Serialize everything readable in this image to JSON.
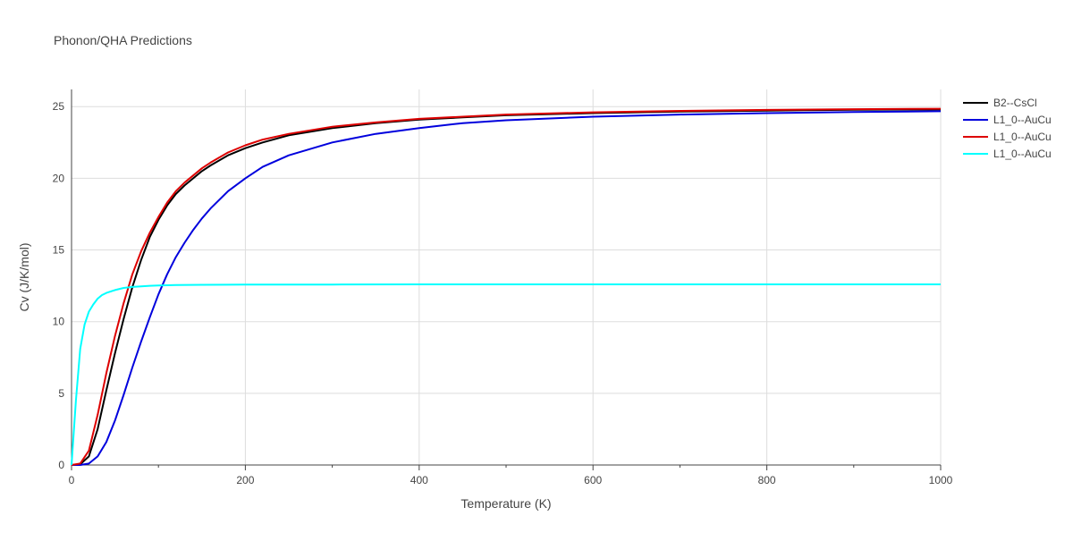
{
  "chart_data": {
    "type": "line",
    "title": "Phonon/QHA Predictions",
    "xlabel": "Temperature (K)",
    "ylabel": "Cv (J/K/mol)",
    "xlim": [
      0,
      1000
    ],
    "ylim": [
      0,
      26.2
    ],
    "x_ticks": [
      0,
      200,
      400,
      600,
      800,
      1000
    ],
    "y_ticks": [
      0,
      5,
      10,
      15,
      20,
      25
    ],
    "grid": true,
    "legend_position": "top-right",
    "series": [
      {
        "name": "B2--CsCl",
        "color": "#000000",
        "x": [
          0,
          10,
          20,
          30,
          40,
          50,
          60,
          70,
          80,
          90,
          100,
          110,
          120,
          130,
          140,
          150,
          160,
          180,
          200,
          220,
          250,
          300,
          350,
          400,
          450,
          500,
          600,
          700,
          800,
          900,
          1000
        ],
        "y": [
          0,
          0.05,
          0.6,
          2.5,
          5.2,
          7.8,
          10.2,
          12.4,
          14.3,
          15.9,
          17.1,
          18.1,
          18.9,
          19.5,
          20.0,
          20.5,
          20.9,
          21.6,
          22.1,
          22.5,
          23.0,
          23.5,
          23.85,
          24.1,
          24.25,
          24.4,
          24.55,
          24.65,
          24.72,
          24.78,
          24.8
        ]
      },
      {
        "name": "L1_0--AuCu",
        "color": "#0000dd",
        "x": [
          0,
          10,
          20,
          30,
          40,
          50,
          60,
          70,
          80,
          90,
          100,
          110,
          120,
          130,
          140,
          150,
          160,
          180,
          200,
          220,
          250,
          300,
          350,
          400,
          450,
          500,
          600,
          700,
          800,
          900,
          1000
        ],
        "y": [
          0,
          0.0,
          0.1,
          0.6,
          1.6,
          3.1,
          4.9,
          6.8,
          8.6,
          10.3,
          11.9,
          13.3,
          14.5,
          15.5,
          16.4,
          17.2,
          17.9,
          19.1,
          20.0,
          20.8,
          21.6,
          22.5,
          23.1,
          23.5,
          23.85,
          24.05,
          24.3,
          24.45,
          24.55,
          24.63,
          24.68
        ]
      },
      {
        "name": "L1_0--AuCu",
        "color": "#dd0000",
        "x": [
          0,
          10,
          20,
          30,
          40,
          50,
          60,
          70,
          80,
          90,
          100,
          110,
          120,
          130,
          140,
          150,
          160,
          180,
          200,
          220,
          250,
          300,
          350,
          400,
          450,
          500,
          600,
          700,
          800,
          900,
          1000
        ],
        "y": [
          0,
          0.1,
          1.0,
          3.5,
          6.4,
          9.0,
          11.3,
          13.3,
          14.9,
          16.2,
          17.3,
          18.3,
          19.1,
          19.7,
          20.2,
          20.7,
          21.1,
          21.8,
          22.3,
          22.7,
          23.1,
          23.6,
          23.9,
          24.15,
          24.3,
          24.45,
          24.6,
          24.7,
          24.77,
          24.82,
          24.85
        ]
      },
      {
        "name": "L1_0--AuCu",
        "color": "#00ffff",
        "x": [
          0,
          5,
          10,
          15,
          20,
          25,
          30,
          35,
          40,
          50,
          60,
          70,
          80,
          90,
          100,
          120,
          150,
          200,
          300,
          400,
          600,
          800,
          1000
        ],
        "y": [
          0,
          4.5,
          8.1,
          9.8,
          10.7,
          11.2,
          11.6,
          11.85,
          12.0,
          12.2,
          12.35,
          12.42,
          12.46,
          12.5,
          12.52,
          12.55,
          12.57,
          12.58,
          12.59,
          12.6,
          12.6,
          12.6,
          12.6
        ]
      }
    ]
  }
}
